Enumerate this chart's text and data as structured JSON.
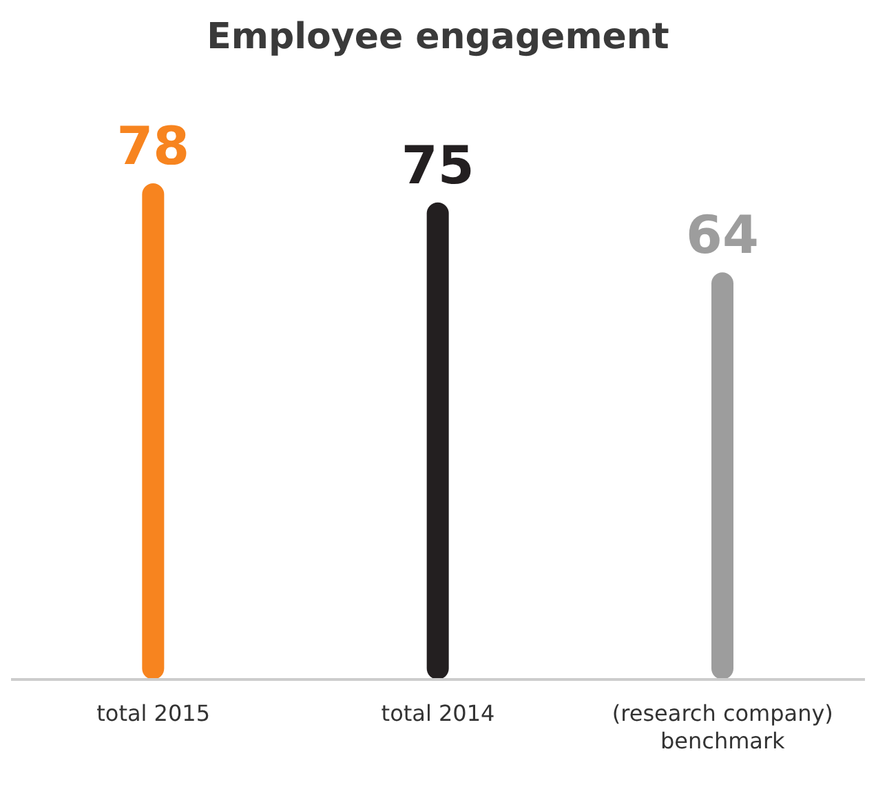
{
  "chart_data": {
    "type": "bar",
    "title": "Employee engagement",
    "categories": [
      "total 2015",
      "total 2014",
      "(research company) benchmark"
    ],
    "values": [
      78,
      75,
      64
    ],
    "colors": [
      "#f7841f",
      "#231f20",
      "#9d9d9d"
    ],
    "data_labels": true
  }
}
